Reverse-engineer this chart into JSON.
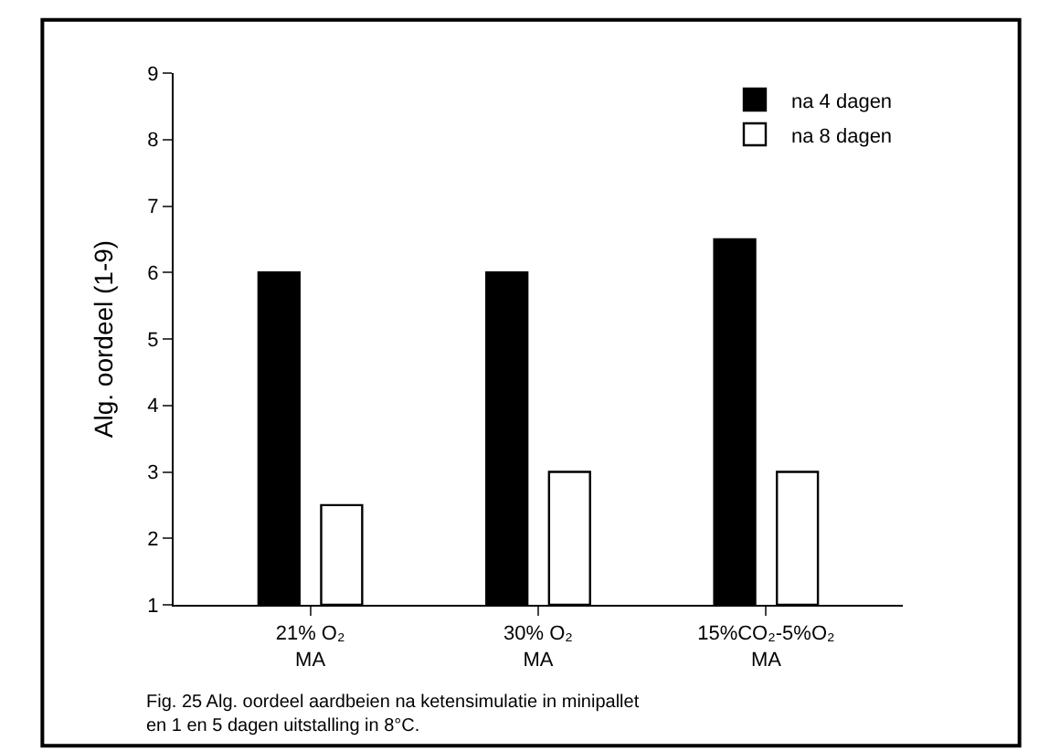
{
  "chart_data": {
    "type": "bar",
    "ylabel": "Alg. oordeel (1-9)",
    "categories": [
      "21% O₂\nMA",
      "30% O₂\nMA",
      "15%CO₂-5%O₂\nMA"
    ],
    "series": [
      {
        "name": "na 4 dagen",
        "color": "#000000",
        "values": [
          6,
          6,
          6.5
        ]
      },
      {
        "name": "na 8 dagen",
        "color": "#ffffff",
        "values": [
          2.5,
          3,
          3
        ]
      }
    ],
    "ylim": [
      1,
      9
    ],
    "yticks": [
      1,
      2,
      3,
      4,
      5,
      6,
      7,
      8,
      9
    ],
    "legend": "top right",
    "annotations": [
      "Fig. 25 Alg. oordeel aardbeien na ketensimulatie in minipallet\nen 1 en 5 dagen uitstalling in 8°C."
    ]
  }
}
